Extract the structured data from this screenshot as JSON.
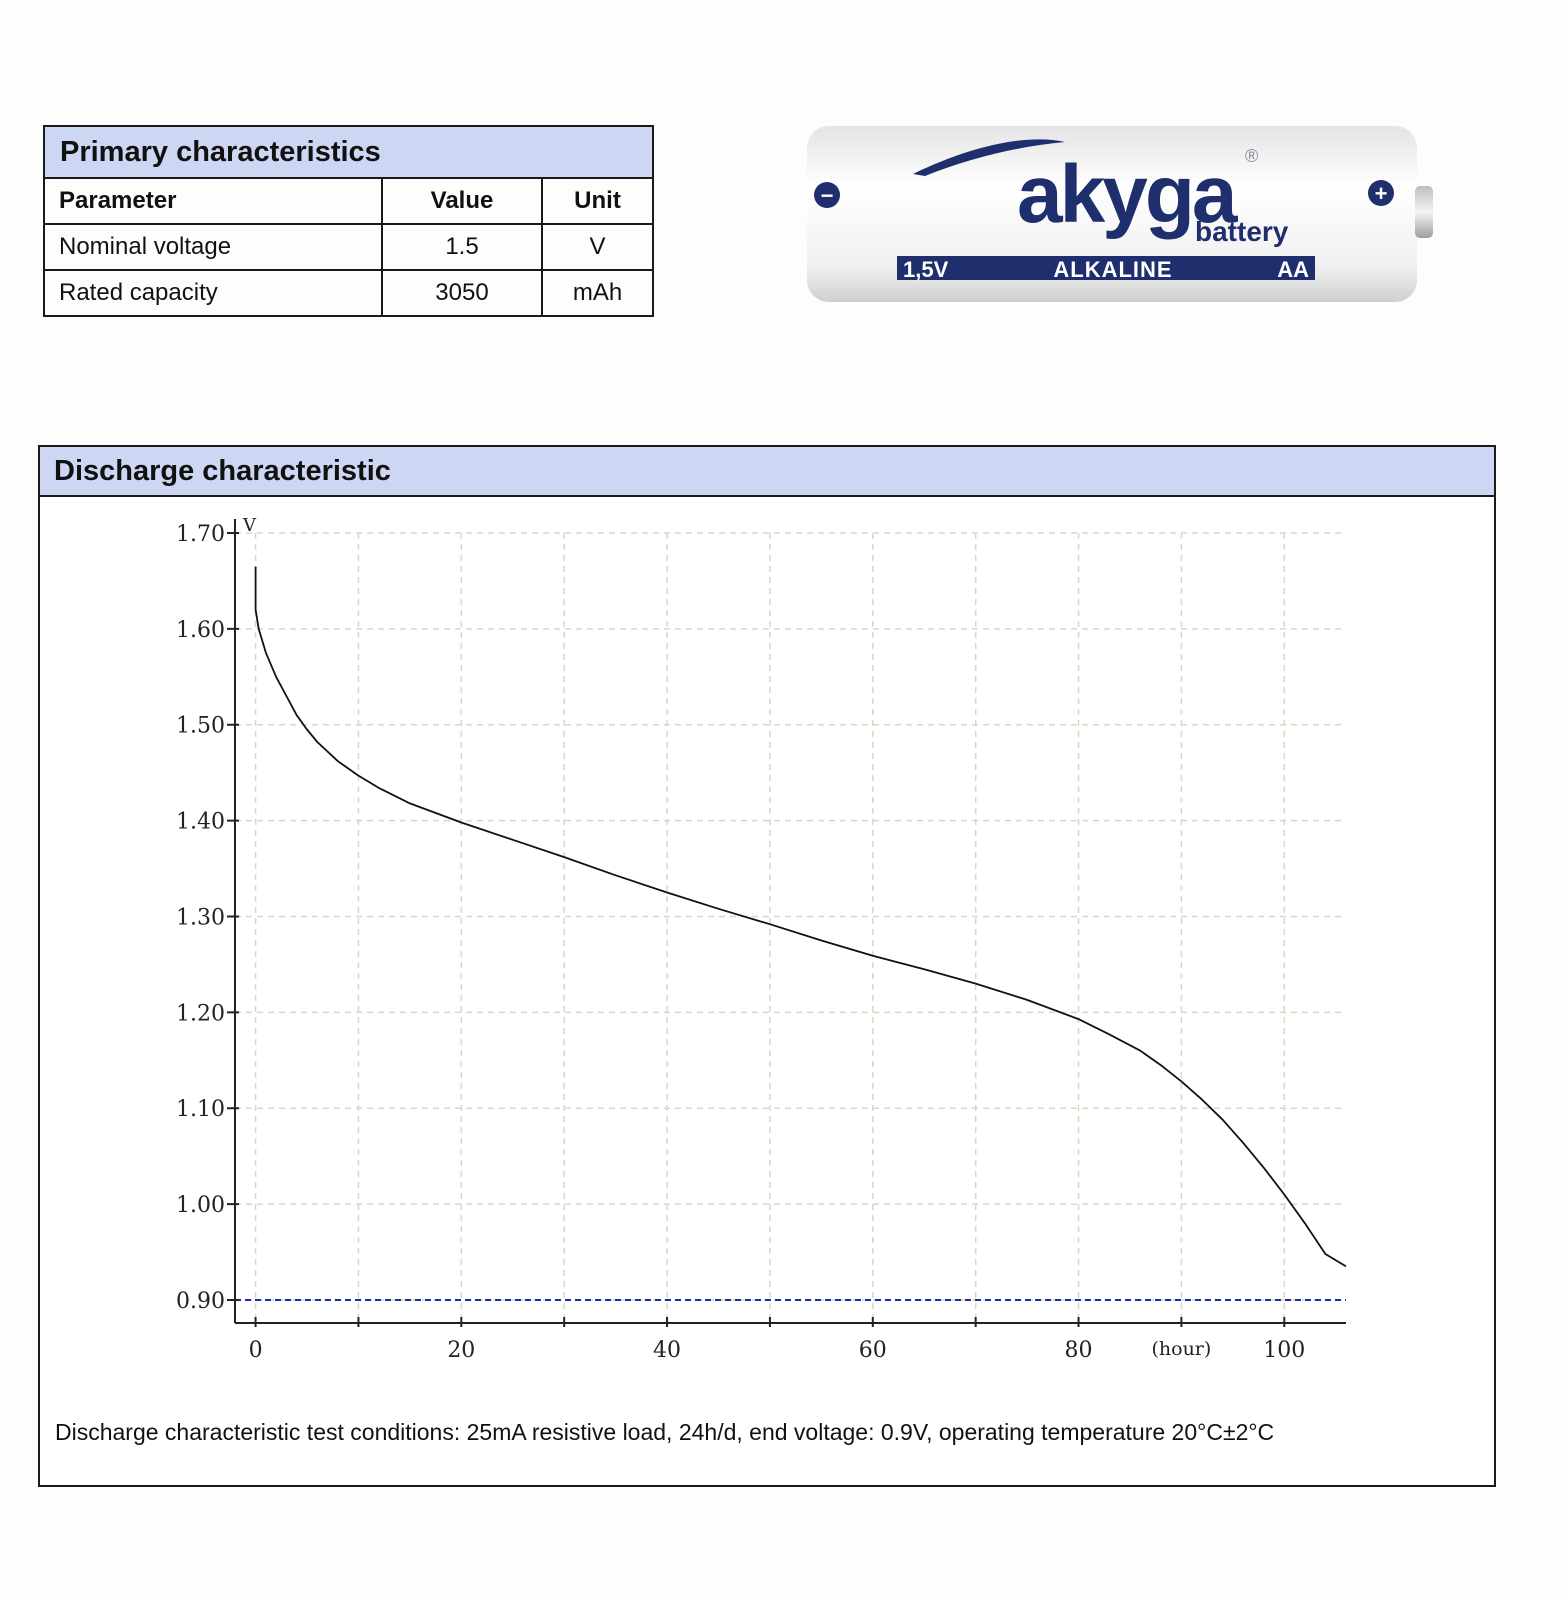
{
  "primary": {
    "title": "Primary characteristics",
    "headers": {
      "parameter": "Parameter",
      "value": "Value",
      "unit": "Unit"
    },
    "rows": [
      {
        "parameter": "Nominal voltage",
        "value": "1.5",
        "unit": "V"
      },
      {
        "parameter": "Rated capacity",
        "value": "3050",
        "unit": "mAh"
      }
    ]
  },
  "battery": {
    "brand": "akyga",
    "sub": "battery",
    "registered": "®",
    "voltage": "1,5V",
    "type": "ALKALINE",
    "size": "AA",
    "minus": "−",
    "plus": "+",
    "colors": {
      "brand": "#1f2f6e",
      "body": "#f2f2f2",
      "band": "#1f2f6e"
    }
  },
  "discharge": {
    "title": "Discharge characteristic",
    "caption": "Discharge characteristic test conditions: 25mA resistive load, 24h/d, end voltage: 0.9V, operating temperature 20°C±2°C"
  },
  "chart_data": {
    "type": "line",
    "ylabel": "V",
    "xunit": "(hour)",
    "xlim": [
      -2,
      106
    ],
    "ylim": [
      0.876,
      1.7
    ],
    "x_ticks": [
      0,
      20,
      40,
      60,
      80,
      100
    ],
    "y_ticks": [
      "1.70",
      "1.60",
      "1.50",
      "1.40",
      "1.30",
      "1.20",
      "1.10",
      "1.00",
      "0.90"
    ],
    "grid": true,
    "end_voltage_line": 0.9,
    "colors": {
      "curve": "#111111",
      "grid": "#d8d8c4",
      "end_line": "#1a2ea8"
    },
    "series": [
      {
        "x": [
          0,
          0,
          0.3,
          1,
          2,
          3,
          4,
          5,
          6,
          8,
          10,
          12,
          15,
          20,
          25,
          30,
          35,
          40,
          45,
          50,
          55,
          60,
          65,
          70,
          75,
          80,
          83,
          86,
          88,
          90,
          92,
          94,
          96,
          98,
          100,
          102,
          104,
          106
        ],
        "y": [
          1.665,
          1.62,
          1.6,
          1.575,
          1.55,
          1.53,
          1.51,
          1.495,
          1.482,
          1.462,
          1.447,
          1.434,
          1.418,
          1.398,
          1.38,
          1.362,
          1.343,
          1.325,
          1.308,
          1.292,
          1.275,
          1.259,
          1.245,
          1.23,
          1.213,
          1.193,
          1.177,
          1.16,
          1.145,
          1.128,
          1.109,
          1.088,
          1.064,
          1.038,
          1.01,
          0.98,
          0.948,
          0.935
        ]
      }
    ]
  }
}
